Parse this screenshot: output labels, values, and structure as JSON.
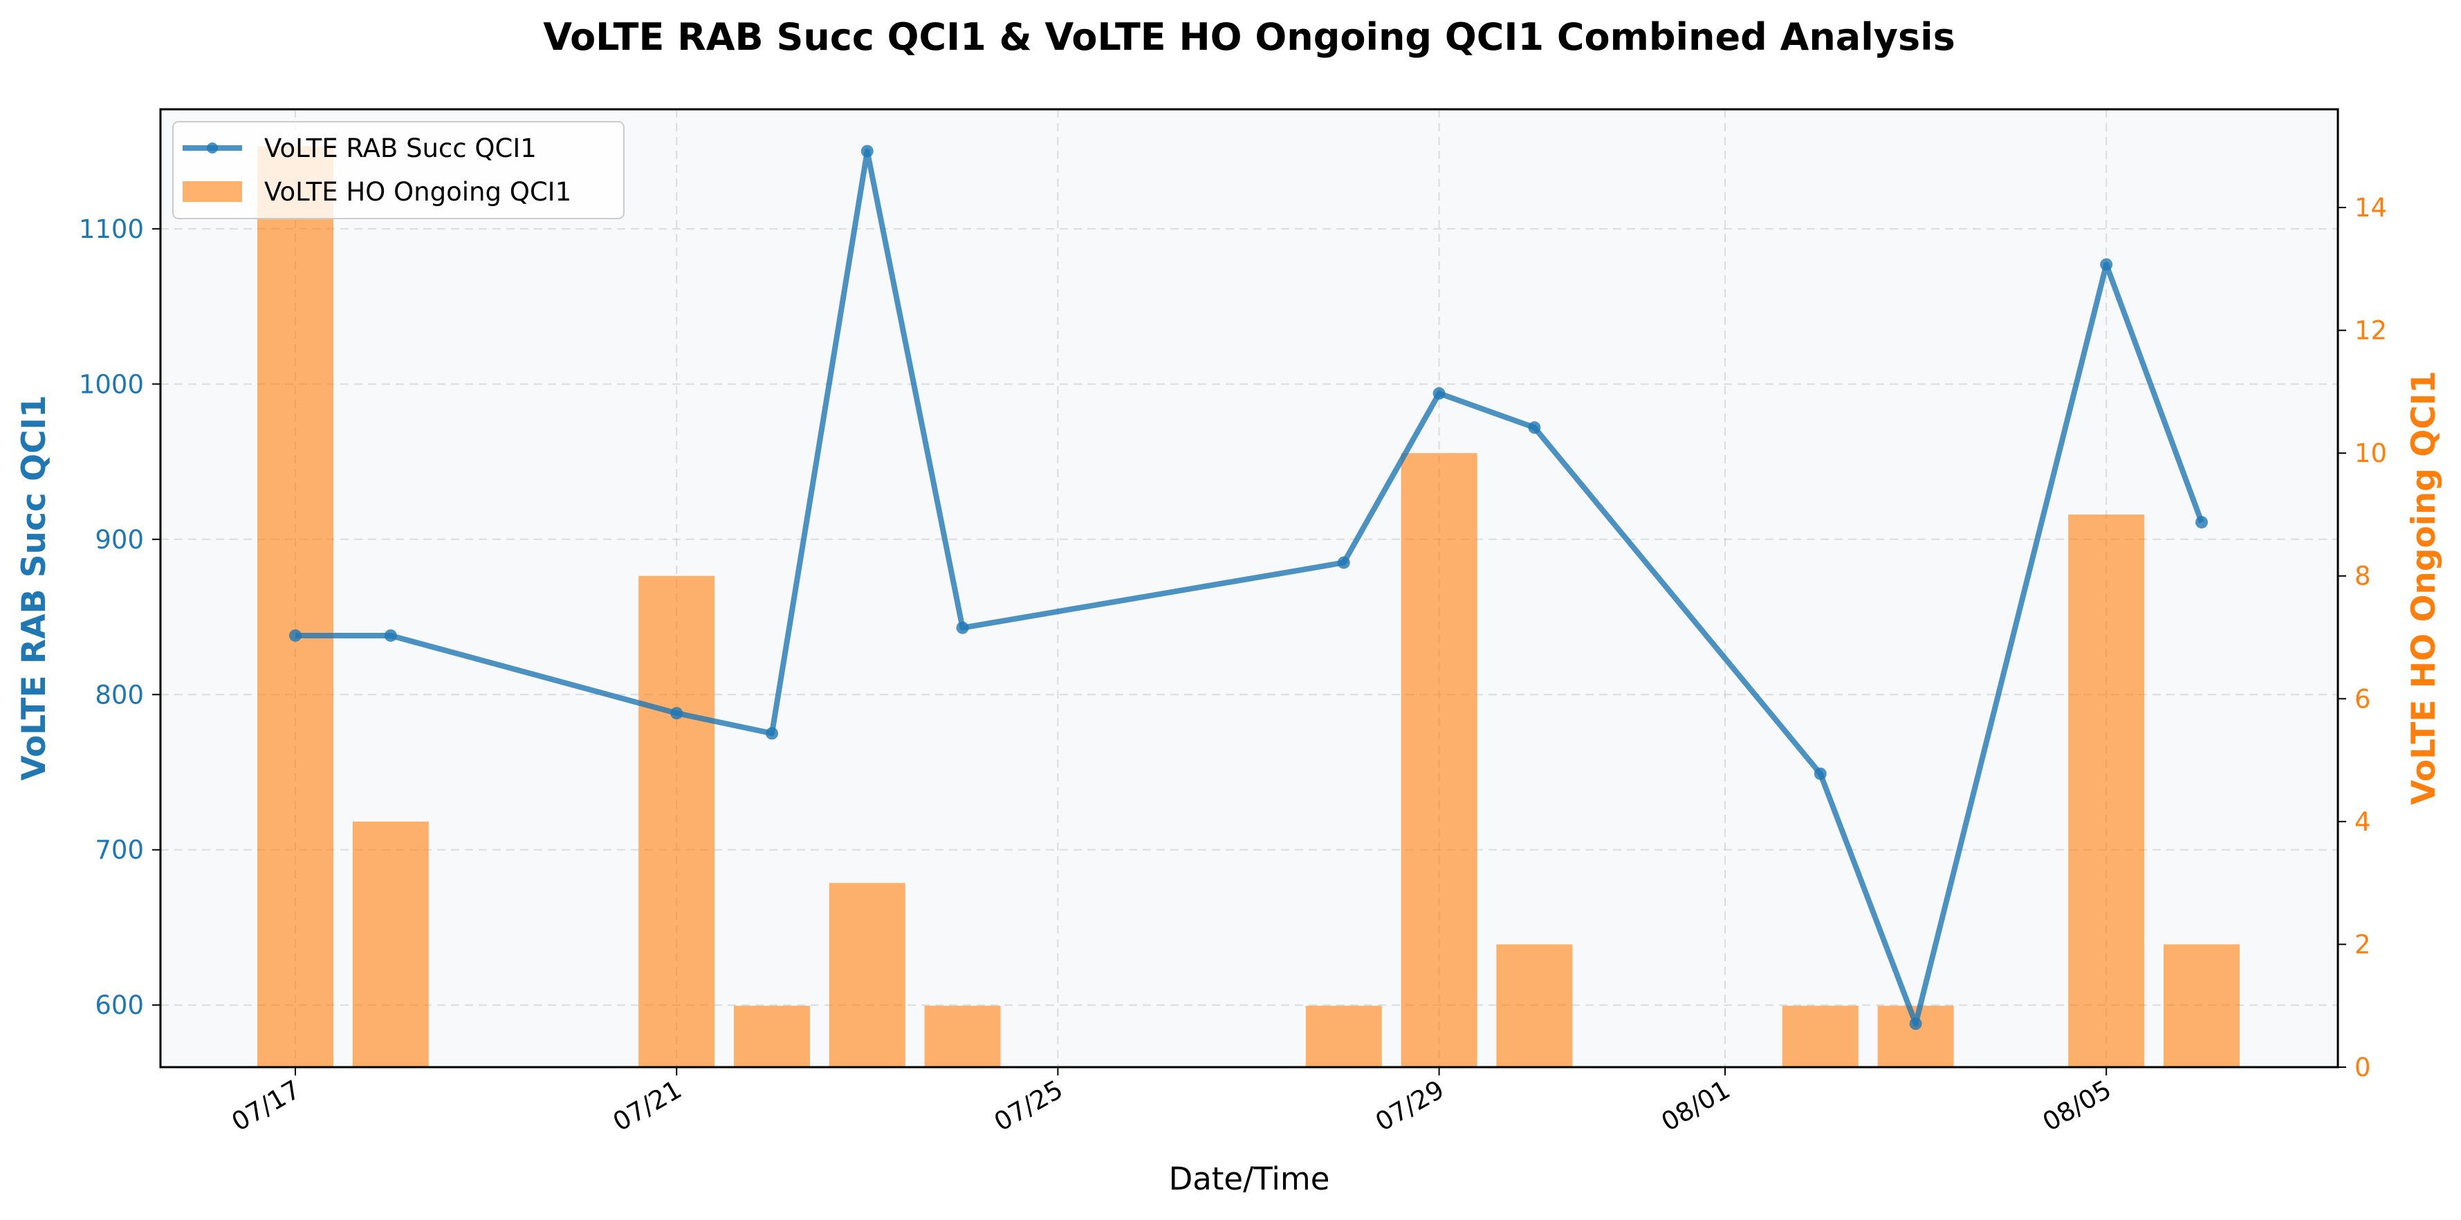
{
  "chart_data": {
    "type": "bar+line",
    "title": "VoLTE RAB Succ QCI1 & VoLTE HO Ongoing QCI1 Combined Analysis",
    "xlabel": "Date/Time",
    "ylabel_left": "VoLTE RAB Succ QCI1",
    "ylabel_right": "VoLTE HO Ongoing QCI1",
    "x_tick_labels": [
      "07/17",
      "07/21",
      "07/25",
      "07/29",
      "08/01",
      "08/05"
    ],
    "x_tick_dates": [
      "07/17",
      "07/21",
      "07/25",
      "07/29",
      "08/01",
      "08/05"
    ],
    "y_left_ticks": [
      600,
      700,
      800,
      900,
      1000,
      1100
    ],
    "y_left_range": [
      560,
      1177
    ],
    "y_right_ticks": [
      0,
      2,
      4,
      6,
      8,
      10,
      12,
      14
    ],
    "y_right_range": [
      0,
      15.6
    ],
    "grid": true,
    "legend_placement": "top-left",
    "colors": {
      "line": "#1f77b4",
      "bar": "#ff7f0e",
      "left_axis": "#1f77b4",
      "right_axis": "#ff7f0e",
      "plot_background": "#f8f9fa"
    },
    "series": [
      {
        "name": "VoLTE RAB Succ QCI1",
        "kind": "line",
        "axis": "left",
        "x": [
          "07/17",
          "07/18",
          "07/21",
          "07/22",
          "07/23",
          "07/24",
          "07/28",
          "07/29",
          "07/30",
          "08/02",
          "08/03",
          "08/05",
          "08/06"
        ],
        "values": [
          838,
          838,
          788,
          775,
          1150,
          843,
          885,
          994,
          972,
          749,
          588,
          1077,
          911
        ]
      },
      {
        "name": "VoLTE HO Ongoing QCI1",
        "kind": "bar",
        "axis": "right",
        "x": [
          "07/17",
          "07/18",
          "07/21",
          "07/22",
          "07/23",
          "07/24",
          "07/28",
          "07/29",
          "07/30",
          "08/02",
          "08/03",
          "08/05",
          "08/06"
        ],
        "values": [
          15,
          4,
          8,
          1,
          3,
          1,
          1,
          10,
          2,
          1,
          1,
          9,
          2
        ]
      }
    ]
  }
}
